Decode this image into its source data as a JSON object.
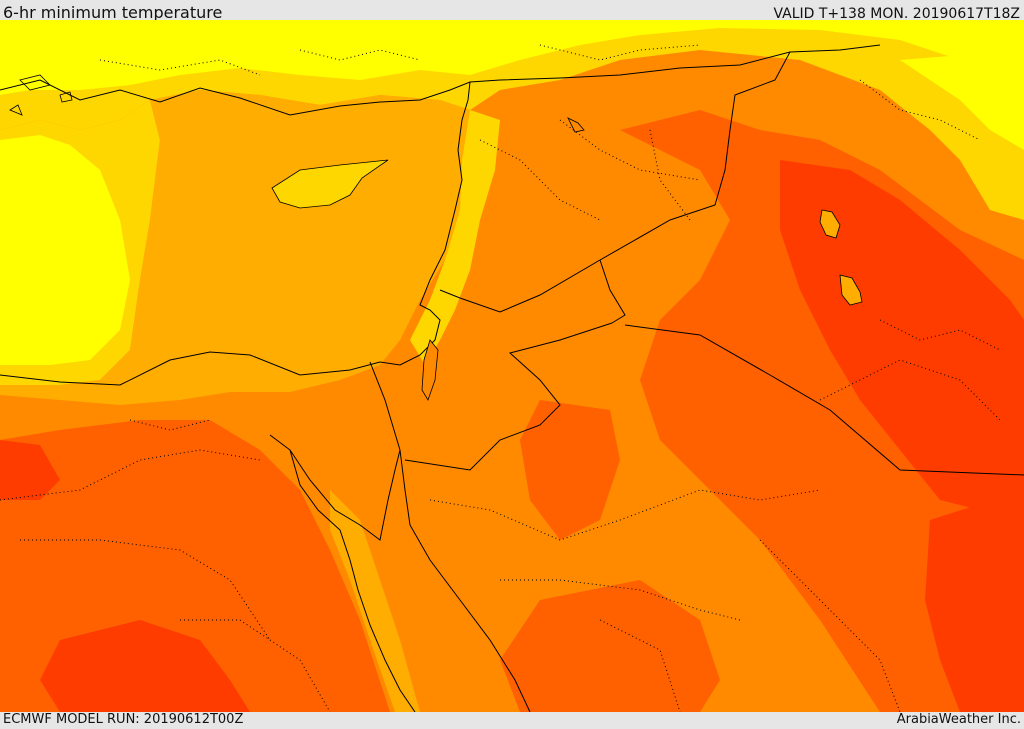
{
  "header": {
    "title": "6-hr minimum temperature",
    "valid": "VALID T+138 MON. 20190617T18Z"
  },
  "footer": {
    "model_run": "ECMWF MODEL RUN: 20190612T00Z",
    "credit": "ArabiaWeather Inc."
  },
  "colors": {
    "coolest": "#ffff00",
    "cool": "#ffd700",
    "mild": "#ffad00",
    "warm": "#ff8a00",
    "hot": "#ff6000",
    "hottest": "#ff3c00",
    "border": "#000000"
  }
}
